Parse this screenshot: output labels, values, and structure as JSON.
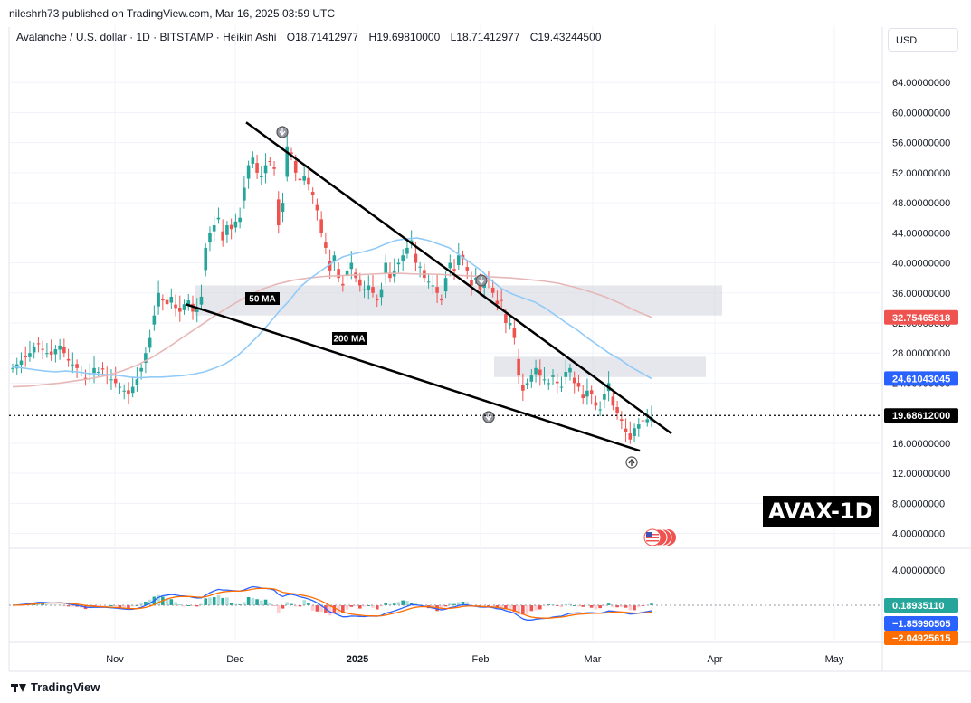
{
  "header": {
    "publisher": "nileshrh73 published on TradingView.com, Mar 16, 2025 03:59 UTC"
  },
  "legend": {
    "symbol": "Avalanche / U.S. dollar · 1D · BITSTAMP · Heikin Ashi",
    "open": "O18.71412977",
    "high": "H19.69810000",
    "low": "L18.71412977",
    "close": "C19.43244500"
  },
  "currency_button": "USD",
  "watermark": "AVAX-1D",
  "footer": {
    "brand": "TradingView"
  },
  "colors": {
    "up": "#26a69a",
    "down": "#ef5350",
    "ma50": "#90caf9",
    "ma200": "#e6b7b7",
    "macd": "#2962ff",
    "signal": "#ff6d00",
    "zone": "#d1d4dc"
  },
  "icons": [
    "tradingview-logo-icon",
    "us-flag-icon",
    "arrow-down-circle-icon",
    "arrow-up-circle-icon"
  ],
  "chart_data": [
    {
      "type": "candlestick",
      "x_ticks": [
        "Nov",
        "Dec",
        "2025",
        "Feb",
        "Mar",
        "Apr",
        "May"
      ],
      "y_ticks": [
        "64.00000000",
        "60.00000000",
        "56.00000000",
        "52.00000000",
        "48.00000000",
        "44.00000000",
        "40.00000000",
        "36.00000000",
        "32.00000000",
        "28.00000000",
        "24.00000000",
        "20.00000000",
        "16.00000000",
        "12.00000000",
        "8.00000000",
        "4.00000000"
      ],
      "ylim": [
        2.5,
        68
      ],
      "annotations": [
        "50 MA",
        "200 MA"
      ],
      "price_tags": [
        {
          "label": "32.75465818",
          "value": 32.75,
          "color": "#ef5350"
        },
        {
          "label": "24.61043045",
          "value": 24.61,
          "color": "#2962ff"
        },
        {
          "label": "19.68612000",
          "value": 19.69,
          "color": "#000000"
        }
      ],
      "closes": [
        26,
        26.5,
        27,
        27.5,
        28,
        28.8,
        29.2,
        28.5,
        28,
        27.8,
        28.5,
        29,
        28,
        27,
        26.5,
        26,
        25.5,
        24.5,
        25.3,
        26,
        25.5,
        25.8,
        25,
        24.5,
        24,
        23.5,
        23,
        22.5,
        23.5,
        24.5,
        26,
        28,
        30,
        33,
        36,
        35,
        34.5,
        35.5,
        34,
        33.5,
        34.5,
        35,
        33.5,
        34,
        35.5,
        42,
        44,
        45,
        46,
        43,
        45,
        44.5,
        45.5,
        46,
        50,
        53,
        54,
        52,
        51.5,
        53,
        53.5,
        52.5,
        45,
        48,
        55.5,
        54.5,
        52,
        51,
        51.5,
        50.5,
        49,
        47,
        44,
        42,
        39,
        41,
        38,
        37,
        39,
        40,
        38,
        37,
        36.5,
        37,
        36,
        35,
        36.5,
        40,
        38,
        39,
        40,
        41,
        42,
        43,
        40,
        39.5,
        38,
        37.5,
        37,
        36,
        35,
        38,
        40,
        39,
        41,
        40.5,
        39,
        37,
        38,
        36.5,
        37.5,
        38,
        36,
        34.5,
        35,
        32,
        32,
        30,
        25,
        23,
        24,
        25,
        26,
        25,
        24.5,
        24,
        25,
        24,
        23.5,
        25.5,
        26,
        24,
        23.5,
        22,
        23,
        22.5,
        21,
        20.5,
        22.5,
        24,
        21,
        20,
        19,
        17.5,
        16.5,
        18,
        18.5,
        19,
        19.2,
        19.4
      ],
      "ma50": [
        26.2,
        26,
        25.8,
        25.6,
        25.5,
        25.6,
        25.5,
        25.3,
        25.2,
        25.1,
        25,
        24.8,
        24.7,
        24.8,
        24.8,
        24.9,
        25,
        25.2,
        25.5,
        26,
        26.6,
        27.5,
        28.8,
        30.2,
        31.8,
        33.5,
        35,
        36.8,
        38,
        39,
        40,
        40.8,
        41.2,
        41.5,
        41.9,
        42.5,
        43,
        43.2,
        43.3,
        43,
        42.5,
        42,
        41,
        40,
        39,
        37.6,
        36.5,
        35.8,
        35.3,
        34.8,
        34,
        33,
        32,
        31.1,
        30,
        29,
        28,
        27.2,
        26.2,
        25.4,
        24.6
      ],
      "ma200": [
        23.5,
        23.6,
        23.8,
        24,
        24.3,
        24.6,
        25,
        25.6,
        26.4,
        27.5,
        28.8,
        30.2,
        31.6,
        33,
        34.3,
        35.5,
        36.5,
        37.2,
        37.7,
        38,
        38.2,
        38.3,
        38.4,
        38.5,
        38.6,
        38.6,
        38.5,
        38.5,
        38.4,
        38.3,
        38.2,
        38.1,
        38,
        37.8,
        37.6,
        37.3,
        36.8,
        36.2,
        35.5,
        34.6,
        33.6,
        32.75
      ],
      "trendlines": [
        "upper-resistance",
        "lower-support"
      ],
      "zones": [
        {
          "from": 33,
          "to": 37
        },
        {
          "from": 24.8,
          "to": 27.5
        }
      ]
    },
    {
      "type": "macd",
      "y_ticks": [
        "4.00000000"
      ],
      "values": [
        {
          "label": "0.18935110",
          "color": "#26a69a"
        },
        {
          "label": "−1.85990505",
          "color": "#2962ff"
        },
        {
          "label": "−2.04925615",
          "color": "#ff6d00"
        }
      ]
    }
  ]
}
